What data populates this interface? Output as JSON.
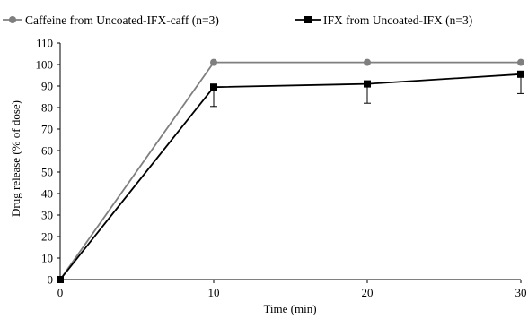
{
  "chart_data": {
    "type": "line",
    "xlabel": "Time (min)",
    "ylabel": "Drug release (% of dose)",
    "x": [
      0,
      10,
      20,
      30
    ],
    "xlim": [
      0,
      30
    ],
    "ylim": [
      0,
      110
    ],
    "x_ticks": [
      "0",
      "10",
      "20",
      "30"
    ],
    "y_ticks": [
      "0",
      "10",
      "20",
      "30",
      "40",
      "50",
      "60",
      "70",
      "80",
      "90",
      "100",
      "110"
    ],
    "grid": false,
    "legend_position": "top",
    "series": [
      {
        "name": "Caffeine from Uncoated-IFX-caff (n=3)",
        "values": [
          0,
          101,
          101,
          101
        ],
        "error": [
          0,
          0,
          0,
          0
        ],
        "color": "#7f7f7f",
        "marker": "circle"
      },
      {
        "name": "IFX from Uncoated-IFX (n=3)",
        "values": [
          0,
          89.5,
          91,
          95.5
        ],
        "error": [
          0,
          9,
          9,
          9
        ],
        "color": "#000000",
        "marker": "square"
      }
    ]
  }
}
